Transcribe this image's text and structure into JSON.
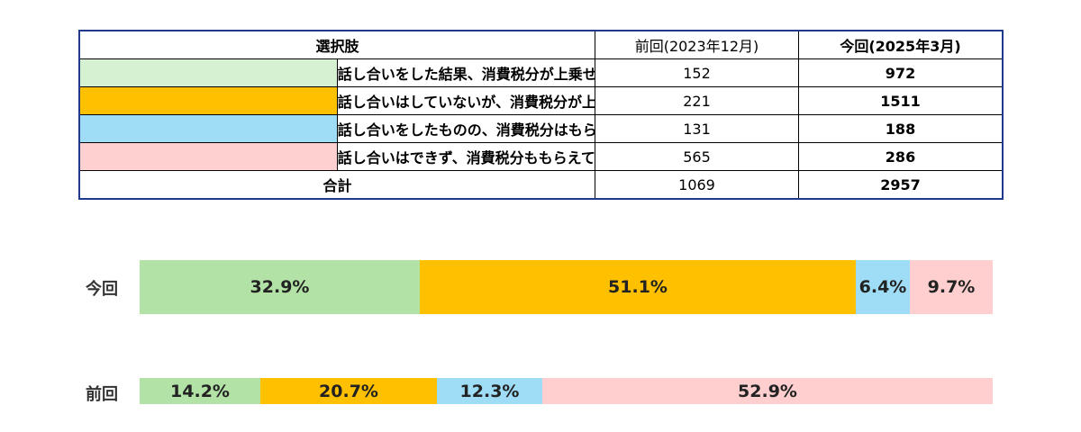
{
  "table": {
    "header": {
      "option": "選択肢",
      "previous": "前回(2023年12月)",
      "current": "今回(2025年3月)"
    },
    "rows": [
      {
        "label": "話し合いをした結果、消費税分が上乗せされている。",
        "previous": "152",
        "current": "972",
        "color": "#d6f0d2"
      },
      {
        "label": "話し合いはしていないが、消費税分が上乗せされている。",
        "previous": "221",
        "current": "1511",
        "color": "#ffc000"
      },
      {
        "label": "話し合いをしたものの、消費税分はもらえていない。",
        "previous": "131",
        "current": "188",
        "color": "#9fdcf5"
      },
      {
        "label": "話し合いはできず、消費税分ももらえていない。",
        "previous": "565",
        "current": "286",
        "color": "#ffd0d0"
      }
    ],
    "total": {
      "label": "合計",
      "previous": "1069",
      "current": "2957"
    }
  },
  "chart_data": {
    "type": "bar",
    "orientation": "horizontal",
    "stacked": "percent",
    "categories": [
      "今回",
      "前回"
    ],
    "series": [
      {
        "values": [
          32.9,
          14.2
        ],
        "labels": [
          "32.9%",
          "14.2%"
        ],
        "color": "#b3e2a6"
      },
      {
        "values": [
          51.1,
          20.7
        ],
        "labels": [
          "51.1%",
          "20.7%"
        ],
        "color": "#ffc000"
      },
      {
        "values": [
          6.4,
          12.3
        ],
        "labels": [
          "6.4%",
          "12.3%"
        ],
        "color": "#9fdcf5"
      },
      {
        "values": [
          9.7,
          52.9
        ],
        "labels": [
          "9.7%",
          "52.9%"
        ],
        "color": "#ffcfcf"
      }
    ],
    "xlim": [
      0,
      100
    ],
    "grid": false,
    "legend": "none"
  }
}
